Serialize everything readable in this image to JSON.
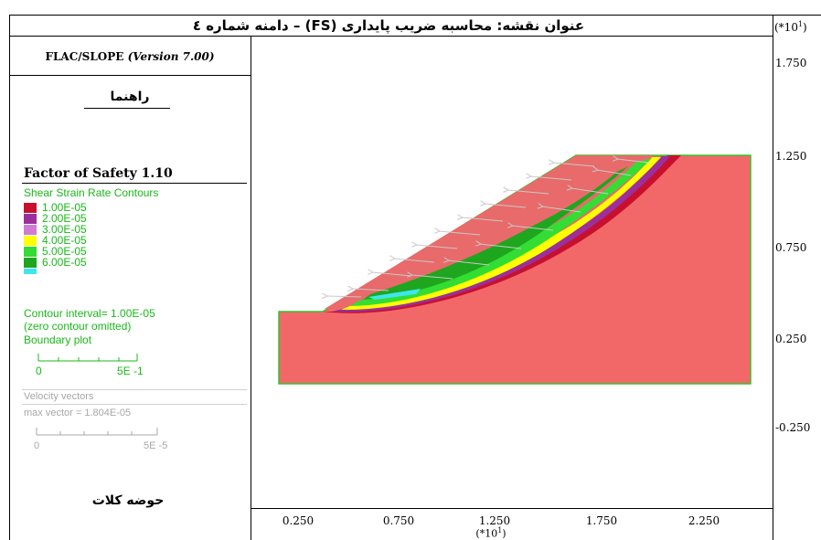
{
  "header": {
    "title": "عنوان نقشه: محاسبه ضریب پایداری (FS) – دامنه شماره ٤",
    "y_scale_factor": "(*10^1)"
  },
  "panel": {
    "software": "FLAC/SLOPE",
    "version": "(Version 7.00)",
    "guide_label": "راهنما",
    "factor_of_safety": "Factor of Safety 1.10",
    "contour_title": "Shear Strain Rate Contours",
    "contour_levels": [
      {
        "label": "1.00E-05",
        "color": "#c8102e"
      },
      {
        "label": "2.00E-05",
        "color": "#9b2f9b"
      },
      {
        "label": "3.00E-05",
        "color": "#d27bd2"
      },
      {
        "label": "4.00E-05",
        "color": "#ffff00"
      },
      {
        "label": "5.00E-05",
        "color": "#33dd33"
      },
      {
        "label": "6.00E-05",
        "color": "#1ea61e"
      }
    ],
    "contour_interval": "Contour interval= 1.00E-05",
    "zero_contour": "(zero contour omitted)",
    "boundary_plot": "Boundary plot",
    "boundary_scale_min": "0",
    "boundary_scale_max": "5E -1",
    "velocity_title": "Velocity vectors",
    "max_vector": "max vector =    1.804E-05",
    "velocity_scale_min": "0",
    "velocity_scale_max": "5E -5",
    "basin_label": "حوضه کلات"
  },
  "colors": {
    "slope_fill": "#f26868",
    "boundary": "#2fc52f",
    "dark_red": "#c8102e",
    "purple": "#9b2f9b",
    "yellow": "#ffff00",
    "green": "#33dd33",
    "dark_green": "#1ea61e",
    "cyan": "#3ee6ee",
    "vector": "#c8c8c8"
  },
  "axes": {
    "y_ticks": [
      "1.750",
      "1.250",
      "0.750",
      "0.250",
      "-0.250"
    ],
    "x_ticks": [
      "0.250",
      "0.750",
      "1.250",
      "1.750",
      "2.250"
    ],
    "x_scale_factor": "(*10^1)"
  }
}
